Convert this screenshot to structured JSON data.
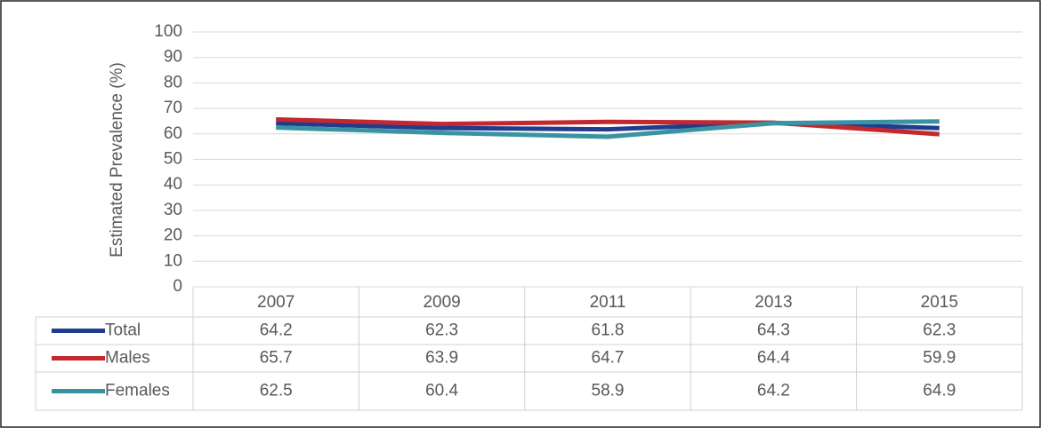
{
  "chart_data": {
    "type": "line",
    "y_label": "Estimated Prevalence (%)",
    "categories": [
      "2007",
      "2009",
      "2011",
      "2013",
      "2015"
    ],
    "series": [
      {
        "name": "Total",
        "color": "#1f3d8c",
        "values": [
          64.2,
          62.3,
          61.8,
          64.3,
          62.3
        ]
      },
      {
        "name": "Males",
        "color": "#c4282e",
        "values": [
          65.7,
          63.9,
          64.7,
          64.4,
          59.9
        ]
      },
      {
        "name": "Females",
        "color": "#3a93a3",
        "values": [
          62.5,
          60.4,
          58.9,
          64.2,
          64.9
        ]
      }
    ],
    "ylim": [
      0,
      100
    ],
    "yticks": [
      0,
      10,
      20,
      30,
      40,
      50,
      60,
      70,
      80,
      90,
      100
    ],
    "grid": true
  }
}
